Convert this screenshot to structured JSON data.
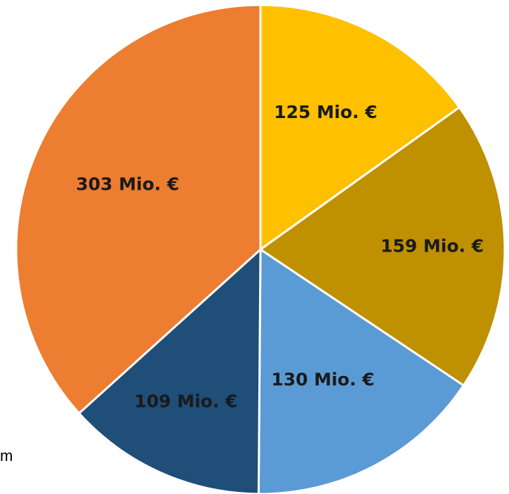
{
  "chart_data": {
    "type": "pie",
    "title": "",
    "start_angle_deg": 0,
    "direction": "clockwise",
    "slices": [
      {
        "label": "125 Mio. €",
        "value": 125,
        "color": "#FFC000",
        "label_color": "#1a1a1a"
      },
      {
        "label": "159 Mio. €",
        "value": 159,
        "color": "#BF9000",
        "label_color": "#1a1a1a"
      },
      {
        "label": "130 Mio. €",
        "value": 130,
        "color": "#5B9BD5",
        "label_color": "#1a1a1a"
      },
      {
        "label": "109 Mio. €",
        "value": 109,
        "color": "#1F4E79",
        "label_color": "#ffffff"
      },
      {
        "label": "303 Mio. €",
        "value": 303,
        "color": "#ED7D31",
        "label_color": "#1a1a1a"
      }
    ],
    "legend": "none",
    "slice_border_color": "#ffffff"
  },
  "page": {
    "stray_text": "m"
  }
}
